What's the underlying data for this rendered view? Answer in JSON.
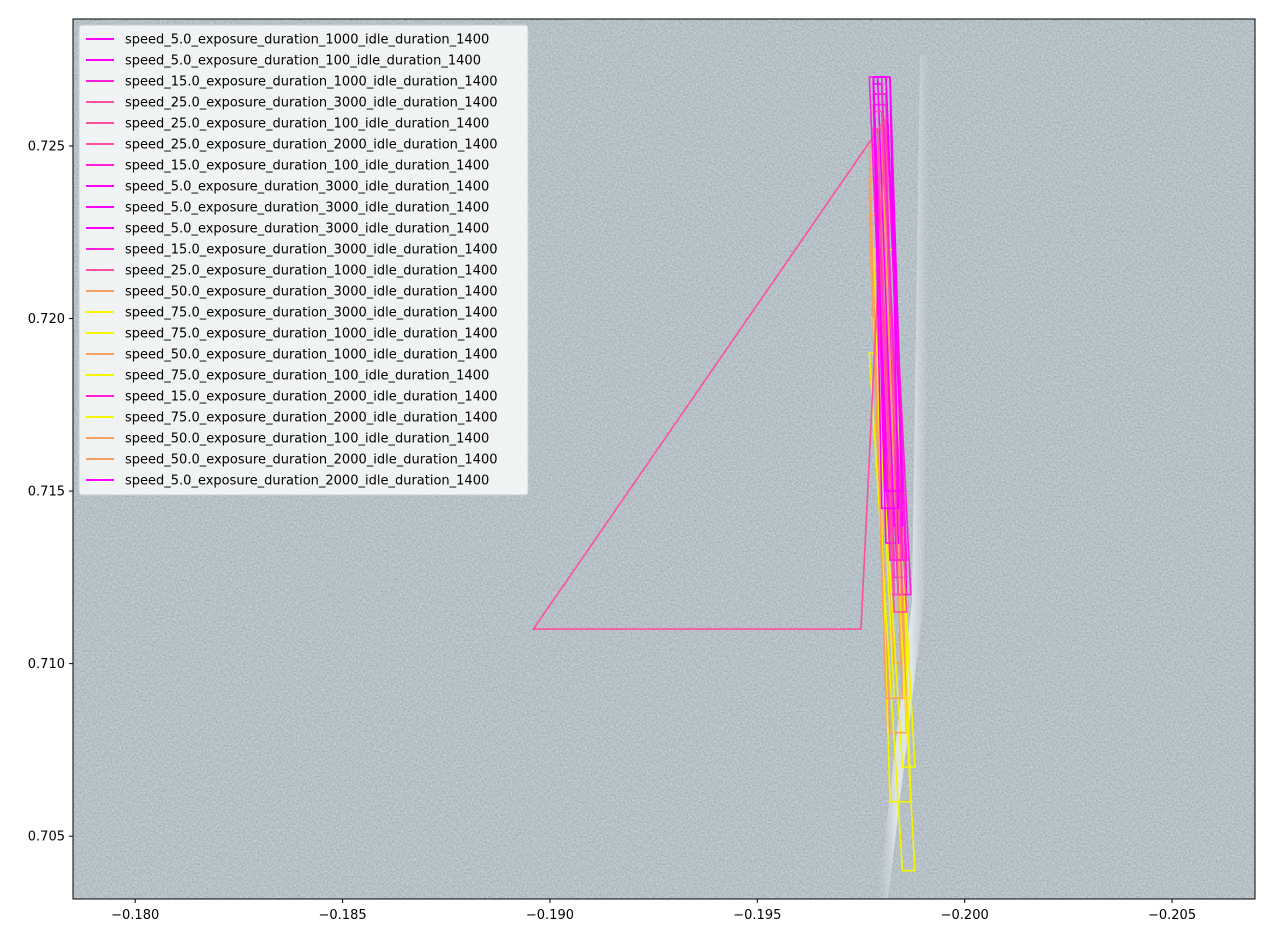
{
  "chart_data": {
    "type": "line",
    "title": "",
    "xlabel": "",
    "ylabel": "",
    "xlim": [
      -0.1785,
      -0.207
    ],
    "ylim": [
      0.70318,
      0.72868
    ],
    "x_axis_inverted": true,
    "x_ticks": [
      -0.18,
      -0.185,
      -0.19,
      -0.195,
      -0.2,
      -0.205
    ],
    "x_tick_labels": [
      "−0.180",
      "−0.185",
      "−0.190",
      "−0.195",
      "−0.200",
      "−0.205"
    ],
    "y_ticks": [
      0.705,
      0.71,
      0.715,
      0.72,
      0.725
    ],
    "y_tick_labels": [
      "0.705",
      "0.710",
      "0.715",
      "0.720",
      "0.725"
    ],
    "grid": false,
    "legend_position": "top-left",
    "background": "aerial photograph of asphalt with a white painted line",
    "colors": {
      "speed_5": "#ff00ff",
      "speed_15": "#ff20d8",
      "speed_25": "#ff4fa0",
      "speed_50": "#f8a060",
      "speed_75": "#f5f500"
    },
    "series": [
      {
        "name": "speed_5.0_exposure_duration_1000_idle_duration_1400",
        "color": "#ff00ff",
        "x": [
          -0.1982,
          -0.1984,
          -0.198,
          -0.1978,
          -0.1982
        ],
        "y": [
          0.727,
          0.7145,
          0.7145,
          0.727,
          0.727
        ]
      },
      {
        "name": "speed_5.0_exposure_duration_100_idle_duration_1400",
        "color": "#ff00ff",
        "x": [
          -0.1981,
          -0.1985,
          -0.1981,
          -0.1978,
          -0.1981
        ],
        "y": [
          0.727,
          0.715,
          0.715,
          0.727,
          0.727
        ]
      },
      {
        "name": "speed_15.0_exposure_duration_1000_idle_duration_1400",
        "color": "#ff20d8",
        "x": [
          -0.198,
          -0.1985,
          -0.1982,
          -0.1977,
          -0.198
        ],
        "y": [
          0.727,
          0.713,
          0.713,
          0.727,
          0.727
        ]
      },
      {
        "name": "speed_25.0_exposure_duration_3000_idle_duration_1400",
        "color": "#ff4fa0",
        "x": [
          -0.198,
          -0.1985,
          -0.1983,
          -0.1978,
          -0.198
        ],
        "y": [
          0.726,
          0.712,
          0.712,
          0.726,
          0.726
        ]
      },
      {
        "name": "speed_25.0_exposure_duration_100_idle_duration_1400",
        "color": "#ff4fa0",
        "x": [
          -0.1981,
          -0.1984,
          -0.1983,
          -0.1979,
          -0.1981
        ],
        "y": [
          0.7255,
          0.712,
          0.712,
          0.7255,
          0.7255
        ]
      },
      {
        "name": "speed_25.0_exposure_duration_2000_idle_duration_1400",
        "color": "#ff4fa0",
        "x": [
          -0.1981,
          -0.1896,
          -0.1975,
          -0.1981
        ],
        "y": [
          0.7258,
          0.711,
          0.711,
          0.7258
        ]
      },
      {
        "name": "speed_15.0_exposure_duration_100_idle_duration_1400",
        "color": "#ff20d8",
        "x": [
          -0.1981,
          -0.1986,
          -0.1983,
          -0.1978,
          -0.1981
        ],
        "y": [
          0.7265,
          0.713,
          0.713,
          0.7265,
          0.7265
        ]
      },
      {
        "name": "speed_5.0_exposure_duration_3000_idle_duration_1400",
        "color": "#ff00ff",
        "x": [
          -0.1982,
          -0.1985,
          -0.1983,
          -0.1979,
          -0.1982
        ],
        "y": [
          0.727,
          0.714,
          0.714,
          0.727,
          0.727
        ]
      },
      {
        "name": "speed_5.0_exposure_duration_3000_idle_duration_1400",
        "color": "#ff00ff",
        "x": [
          -0.1981,
          -0.1986,
          -0.1982,
          -0.1978,
          -0.1981
        ],
        "y": [
          0.727,
          0.713,
          0.713,
          0.727,
          0.727
        ]
      },
      {
        "name": "speed_5.0_exposure_duration_3000_idle_duration_1400",
        "color": "#ff00ff",
        "x": [
          -0.198,
          -0.1984,
          -0.1981,
          -0.1978,
          -0.198
        ],
        "y": [
          0.7268,
          0.7135,
          0.7135,
          0.7268,
          0.7268
        ]
      },
      {
        "name": "speed_15.0_exposure_duration_3000_idle_duration_1400",
        "color": "#ff20d8",
        "x": [
          -0.1981,
          -0.1987,
          -0.1984,
          -0.1978,
          -0.1981
        ],
        "y": [
          0.7265,
          0.712,
          0.712,
          0.7265,
          0.7265
        ]
      },
      {
        "name": "speed_25.0_exposure_duration_1000_idle_duration_1400",
        "color": "#ff4fa0",
        "x": [
          -0.198,
          -0.1986,
          -0.1983,
          -0.1978,
          -0.198
        ],
        "y": [
          0.7255,
          0.7115,
          0.7115,
          0.7255,
          0.7255
        ]
      },
      {
        "name": "speed_50.0_exposure_duration_3000_idle_duration_1400",
        "color": "#f8a060",
        "x": [
          -0.198,
          -0.1985,
          -0.1981,
          -0.1977,
          -0.198
        ],
        "y": [
          0.725,
          0.709,
          0.709,
          0.725,
          0.725
        ]
      },
      {
        "name": "speed_75.0_exposure_duration_3000_idle_duration_1400",
        "color": "#f5f500",
        "x": [
          -0.1983,
          -0.1987,
          -0.1982,
          -0.1978,
          -0.1983
        ],
        "y": [
          0.722,
          0.706,
          0.706,
          0.722,
          0.722
        ]
      },
      {
        "name": "speed_75.0_exposure_duration_1000_idle_duration_1400",
        "color": "#f5f500",
        "x": [
          -0.1981,
          -0.1988,
          -0.1985,
          -0.1977,
          -0.1981
        ],
        "y": [
          0.719,
          0.704,
          0.704,
          0.719,
          0.719
        ]
      },
      {
        "name": "speed_50.0_exposure_duration_1000_idle_duration_1400",
        "color": "#f8a060",
        "x": [
          -0.198,
          -0.1986,
          -0.1982,
          -0.1977,
          -0.198
        ],
        "y": [
          0.724,
          0.708,
          0.708,
          0.724,
          0.724
        ]
      },
      {
        "name": "speed_75.0_exposure_duration_100_idle_duration_1400",
        "color": "#f5f500",
        "x": [
          -0.1982,
          -0.1988,
          -0.1985,
          -0.1978,
          -0.1982
        ],
        "y": [
          0.72,
          0.707,
          0.707,
          0.72,
          0.72
        ]
      },
      {
        "name": "speed_15.0_exposure_duration_2000_idle_duration_1400",
        "color": "#ff20d8",
        "x": [
          -0.1981,
          -0.1986,
          -0.1983,
          -0.1978,
          -0.1981
        ],
        "y": [
          0.7262,
          0.7125,
          0.7125,
          0.7262,
          0.7262
        ]
      },
      {
        "name": "speed_75.0_exposure_duration_2000_idle_duration_1400",
        "color": "#f5f500",
        "x": [
          -0.1982,
          -0.1987,
          -0.1983,
          -0.1978,
          -0.1982
        ],
        "y": [
          0.721,
          0.709,
          0.709,
          0.721,
          0.721
        ]
      },
      {
        "name": "speed_50.0_exposure_duration_100_idle_duration_1400",
        "color": "#f8a060",
        "x": [
          -0.198,
          -0.1986,
          -0.1983,
          -0.1977,
          -0.198
        ],
        "y": [
          0.7235,
          0.71,
          0.71,
          0.7235,
          0.7235
        ]
      },
      {
        "name": "speed_50.0_exposure_duration_2000_idle_duration_1400",
        "color": "#f8a060",
        "x": [
          -0.1981,
          -0.1987,
          -0.1982,
          -0.1977,
          -0.1981
        ],
        "y": [
          0.723,
          0.706,
          0.706,
          0.723,
          0.723
        ]
      },
      {
        "name": "speed_5.0_exposure_duration_2000_idle_duration_1400",
        "color": "#ff00ff",
        "x": [
          -0.1982,
          -0.1986,
          -0.1982,
          -0.1978,
          -0.1982
        ],
        "y": [
          0.727,
          0.712,
          0.712,
          0.727,
          0.727
        ]
      }
    ]
  }
}
